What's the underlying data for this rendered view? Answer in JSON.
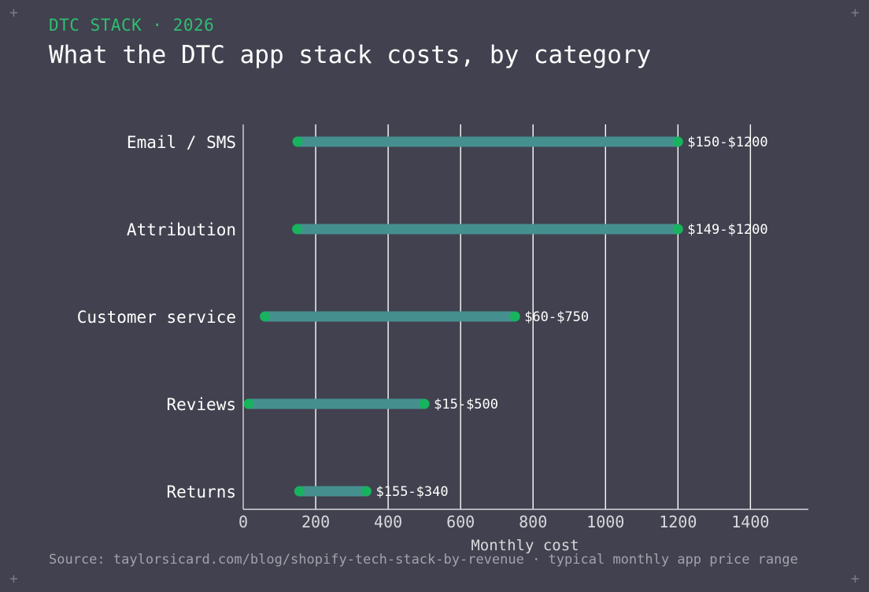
{
  "header": {
    "kicker": "DTC STACK · 2026",
    "title": "What the DTC app stack costs, by category"
  },
  "footer": {
    "source": "Source: taylorsicard.com/blog/shopify-tech-stack-by-revenue · typical monthly app price range"
  },
  "colors": {
    "background": "#41414f",
    "bar": "#45908f",
    "endpoint": "#17b35e",
    "grid": "#ffffff",
    "kicker": "#2fbf71"
  },
  "chart_data": {
    "type": "range-bar",
    "xlabel": "Monthly cost",
    "ylabel": "",
    "xlim": [
      0,
      1560
    ],
    "xticks": [
      0,
      200,
      400,
      600,
      800,
      1000,
      1200,
      1400
    ],
    "grid": true,
    "categories": [
      "Email / SMS",
      "Attribution",
      "Customer service",
      "Reviews",
      "Returns"
    ],
    "ranges": [
      {
        "category": "Email / SMS",
        "low": 150,
        "high": 1200,
        "label": "$150-$1200"
      },
      {
        "category": "Attribution",
        "low": 149,
        "high": 1200,
        "label": "$149-$1200"
      },
      {
        "category": "Customer service",
        "low": 60,
        "high": 750,
        "label": "$60-$750"
      },
      {
        "category": "Reviews",
        "low": 15,
        "high": 500,
        "label": "$15-$500"
      },
      {
        "category": "Returns",
        "low": 155,
        "high": 340,
        "label": "$155-$340"
      }
    ]
  }
}
